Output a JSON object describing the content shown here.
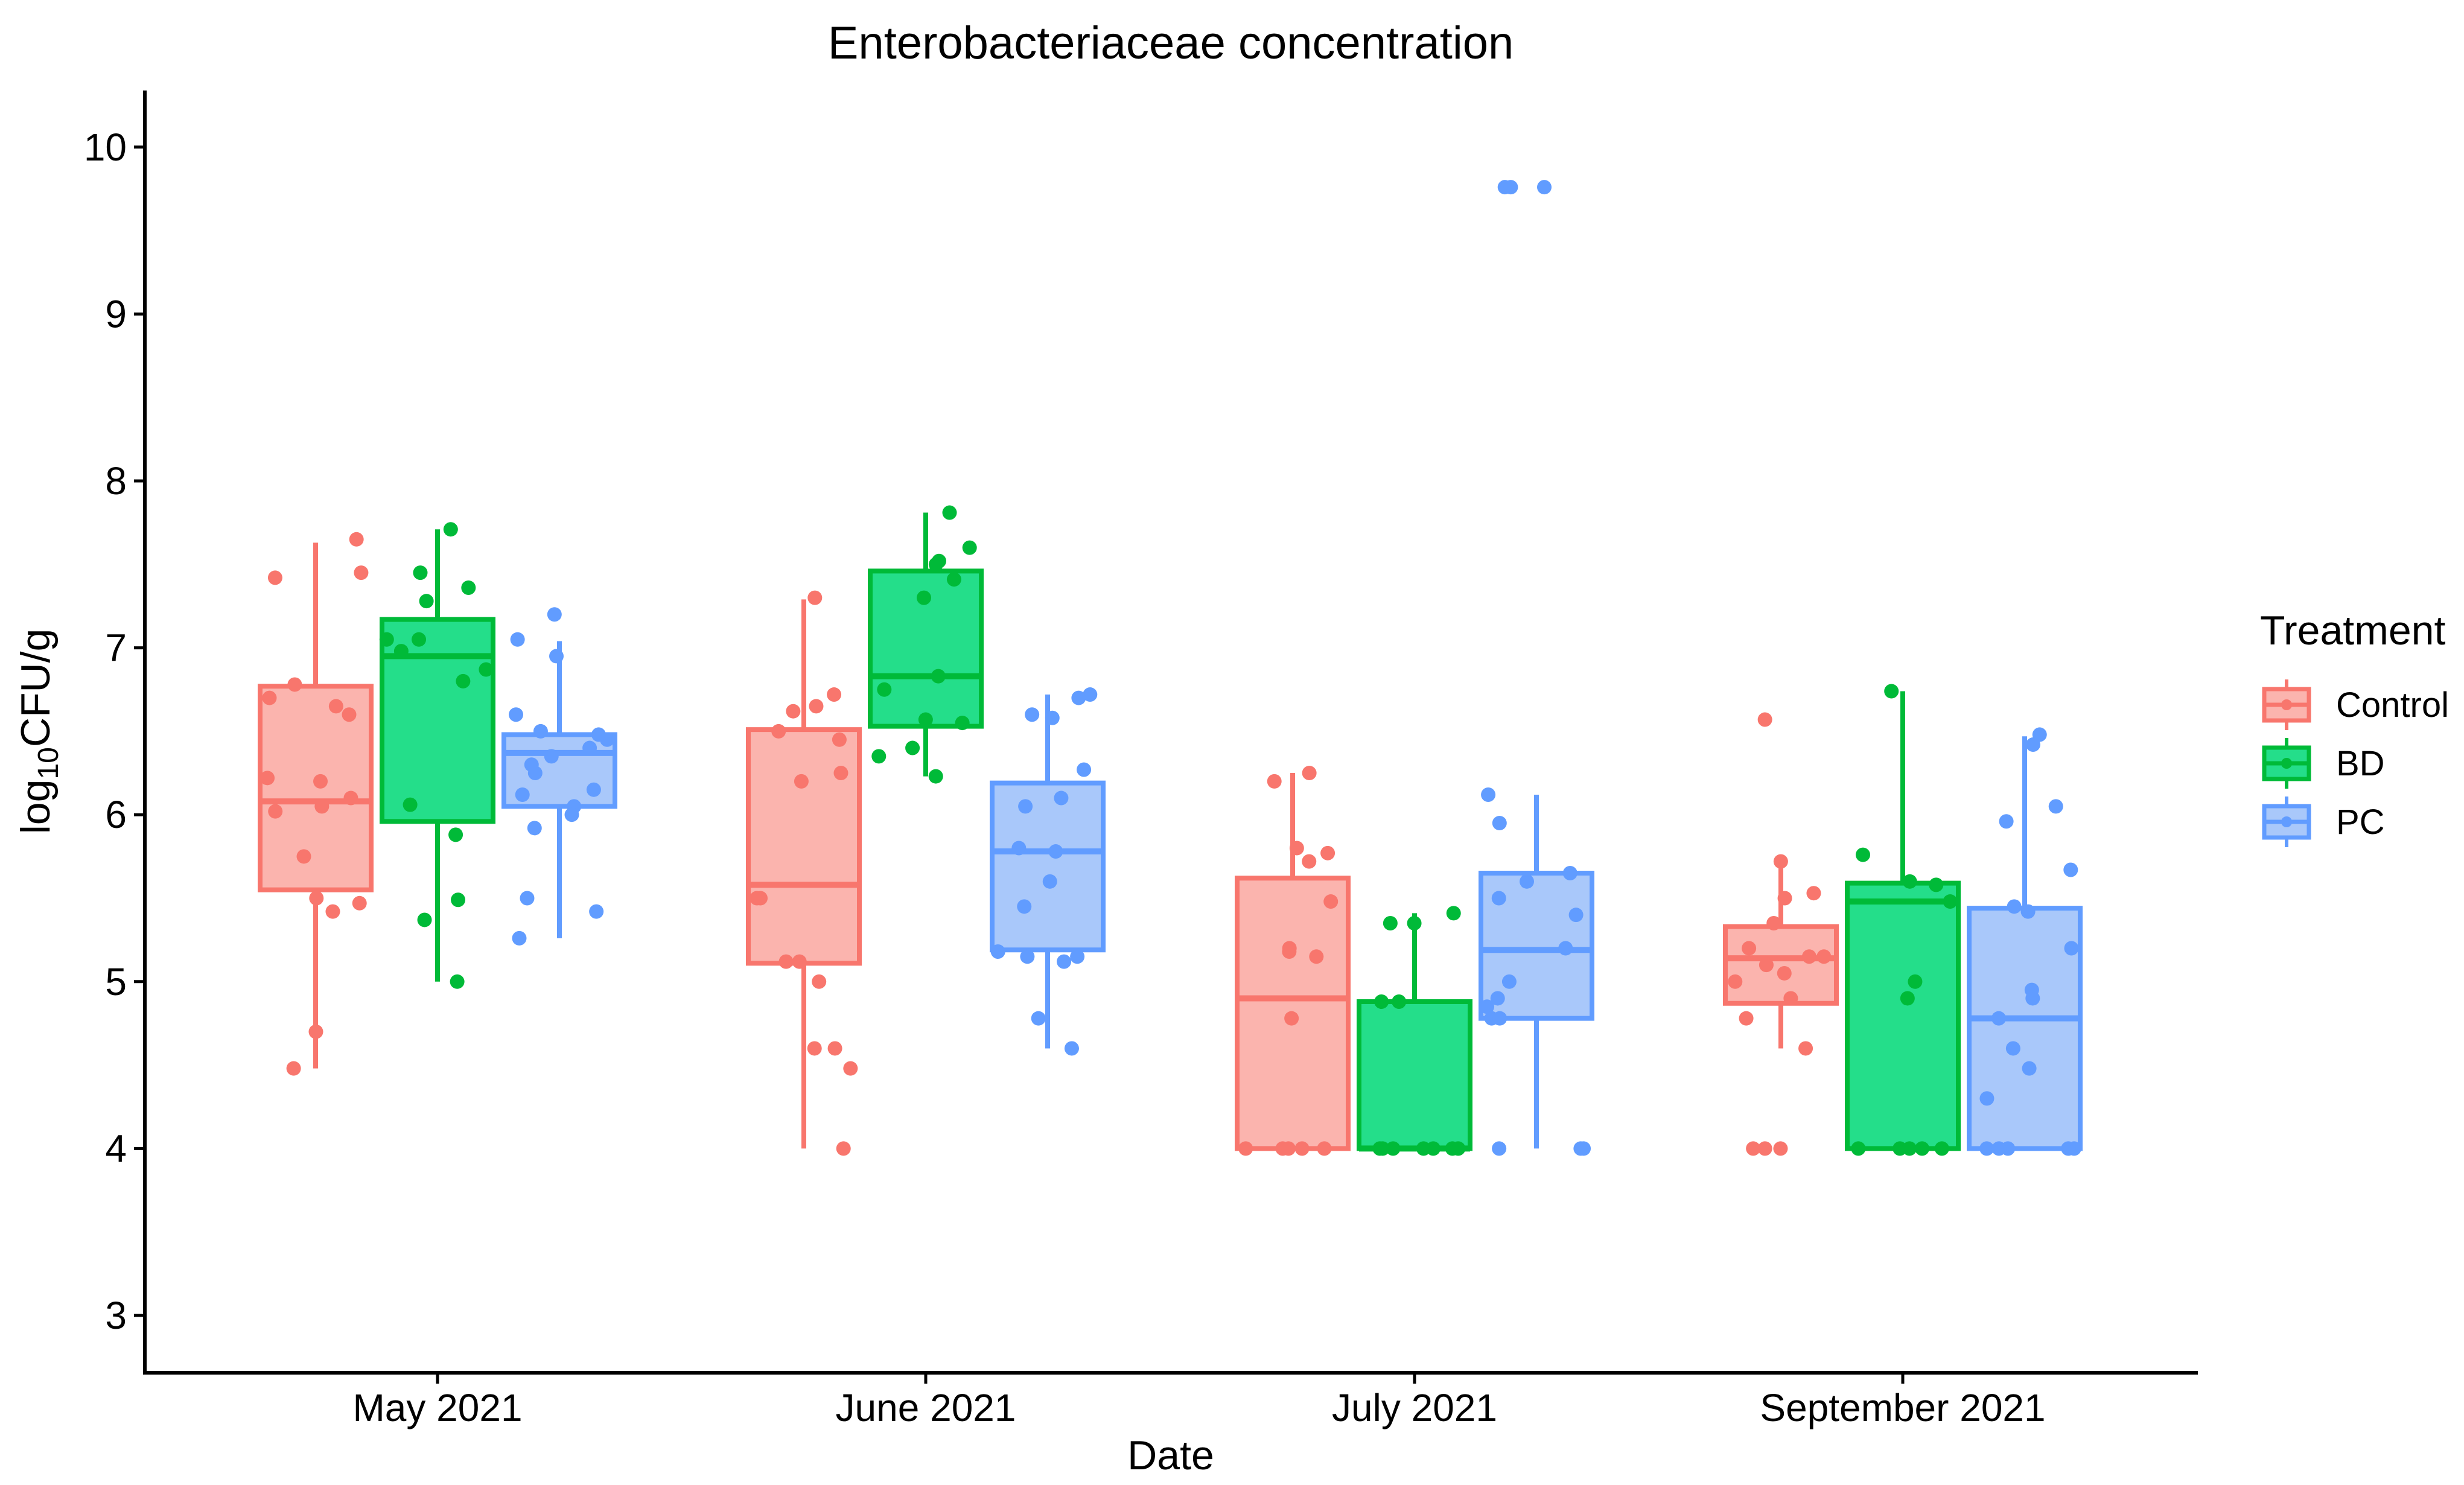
{
  "chart_data": {
    "type": "box",
    "title": "Enterobacteriaceae concentration",
    "xlabel": "Date",
    "ylabel": {
      "main": "log",
      "sub": "10",
      "tail": "CFU/g"
    },
    "ylim": [
      2.65,
      10.35
    ],
    "yticks": [
      3,
      4,
      5,
      6,
      7,
      8,
      9,
      10
    ],
    "categories": [
      "May 2021",
      "June 2021",
      "July 2021",
      "September 2021"
    ],
    "legend": {
      "title": "Treatment",
      "position": "right",
      "entries": [
        "Control",
        "BD",
        "PC"
      ]
    },
    "series": [
      {
        "name": "Control",
        "color": "#F8766D",
        "fill": "#FBB4AE",
        "boxes": [
          {
            "q1": 5.55,
            "median": 6.08,
            "q3": 6.77,
            "lower": 4.48,
            "upper": 7.63
          },
          {
            "q1": 5.11,
            "median": 5.58,
            "q3": 6.51,
            "lower": 4.0,
            "upper": 7.29
          },
          {
            "q1": 4.0,
            "median": 4.9,
            "q3": 5.62,
            "lower": 4.0,
            "upper": 6.25
          },
          {
            "q1": 4.87,
            "median": 5.14,
            "q3": 5.33,
            "lower": 4.6,
            "upper": 5.75
          }
        ],
        "points": [
          [
            7.65,
            7.42,
            7.45,
            6.78,
            6.7,
            6.65,
            6.6,
            6.22,
            6.2,
            6.1,
            6.05,
            6.02,
            5.75,
            5.5,
            5.47,
            5.42,
            4.7,
            4.48
          ],
          [
            7.3,
            6.72,
            6.65,
            6.62,
            6.5,
            6.45,
            6.25,
            6.2,
            5.5,
            5.5,
            5.12,
            5.12,
            5.0,
            4.6,
            4.6,
            4.48,
            4.0
          ],
          [
            6.25,
            6.2,
            5.8,
            5.72,
            5.77,
            5.48,
            5.2,
            5.18,
            5.15,
            4.78,
            4.0,
            4.0,
            4.0,
            4.0,
            4.0
          ],
          [
            6.57,
            5.72,
            5.53,
            5.5,
            5.35,
            5.2,
            5.15,
            5.15,
            5.1,
            5.05,
            5.0,
            4.9,
            4.78,
            4.6,
            4.0,
            4.0,
            4.0
          ]
        ]
      },
      {
        "name": "BD",
        "color": "#00BA38",
        "fill": "#24DE8A",
        "boxes": [
          {
            "q1": 5.96,
            "median": 6.95,
            "q3": 7.17,
            "lower": 5.0,
            "upper": 7.71
          },
          {
            "q1": 6.53,
            "median": 6.83,
            "q3": 7.46,
            "lower": 6.23,
            "upper": 7.81
          },
          {
            "q1": 4.0,
            "median": 4.0,
            "q3": 4.88,
            "lower": 4.0,
            "upper": 5.41
          },
          {
            "q1": 4.0,
            "median": 5.48,
            "q3": 5.59,
            "lower": 4.0,
            "upper": 6.74
          }
        ],
        "points": [
          [
            7.71,
            7.45,
            7.36,
            7.28,
            7.05,
            7.05,
            6.98,
            6.87,
            6.8,
            6.06,
            5.88,
            5.49,
            5.37,
            5.0
          ],
          [
            7.81,
            7.6,
            7.52,
            7.5,
            7.41,
            7.3,
            6.83,
            6.75,
            6.57,
            6.55,
            6.4,
            6.35,
            6.23
          ],
          [
            5.41,
            5.35,
            5.35,
            4.88,
            4.88,
            4.0,
            4.0,
            4.0,
            4.0,
            4.0,
            4.0,
            4.0
          ],
          [
            6.74,
            5.76,
            5.6,
            5.58,
            5.48,
            5.0,
            4.9,
            4.0,
            4.0,
            4.0,
            4.0,
            4.0
          ]
        ]
      },
      {
        "name": "PC",
        "color": "#619CFF",
        "fill": "#A9C8FA",
        "boxes": [
          {
            "q1": 6.05,
            "median": 6.37,
            "q3": 6.48,
            "lower": 5.26,
            "upper": 7.04
          },
          {
            "q1": 5.19,
            "median": 5.78,
            "q3": 6.19,
            "lower": 4.6,
            "upper": 6.72
          },
          {
            "q1": 4.78,
            "median": 5.19,
            "q3": 5.65,
            "lower": 4.0,
            "upper": 6.12
          },
          {
            "q1": 4.0,
            "median": 4.78,
            "q3": 5.44,
            "lower": 4.0,
            "upper": 6.47
          }
        ],
        "points": [
          [
            7.2,
            7.05,
            6.95,
            6.6,
            6.5,
            6.48,
            6.45,
            6.4,
            6.35,
            6.3,
            6.25,
            6.15,
            6.12,
            6.05,
            6.0,
            5.92,
            5.5,
            5.42,
            5.26
          ],
          [
            6.72,
            6.7,
            6.6,
            6.58,
            6.27,
            6.1,
            6.05,
            5.8,
            5.78,
            5.6,
            5.45,
            5.18,
            5.15,
            5.15,
            5.12,
            4.78,
            4.6
          ],
          [
            9.76,
            9.76,
            9.76,
            6.12,
            5.95,
            5.65,
            5.6,
            5.5,
            5.4,
            5.2,
            5.0,
            4.9,
            4.85,
            4.78,
            4.78,
            4.0,
            4.0,
            4.0
          ],
          [
            6.48,
            6.42,
            6.05,
            5.96,
            5.67,
            5.45,
            5.42,
            5.2,
            4.95,
            4.9,
            4.78,
            4.6,
            4.48,
            4.3,
            4.0,
            4.0,
            4.0,
            4.0,
            4.0
          ]
        ]
      }
    ]
  }
}
